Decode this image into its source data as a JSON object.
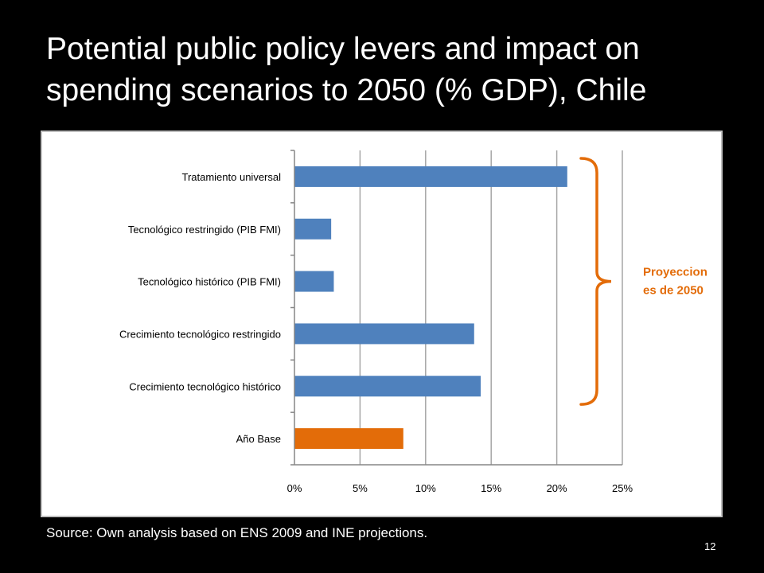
{
  "slide": {
    "title": "Potential public policy levers and impact on spending scenarios to 2050 (% GDP), Chile",
    "source": "Source: Own analysis based on ENS 2009 and INE projections.",
    "page_number": "12"
  },
  "colors": {
    "series_blue": "#4f81bd",
    "base_orange": "#e36c09",
    "brace_orange": "#e36c09",
    "grid": "#a6a6a6"
  },
  "chart_data": {
    "type": "bar",
    "orientation": "horizontal",
    "title": "",
    "xlabel": "",
    "ylabel": "",
    "categories": [
      "Tratamiento universal",
      "Tecnológico restringido (PIB FMI)",
      "Tecnológico histórico (PIB FMI)",
      "Crecimiento tecnológico restringido",
      "Crecimiento tecnológico histórico",
      "Año Base"
    ],
    "values": [
      20.8,
      2.8,
      3.0,
      13.7,
      14.2,
      8.3
    ],
    "bar_colors": [
      "#4f81bd",
      "#4f81bd",
      "#4f81bd",
      "#4f81bd",
      "#4f81bd",
      "#e36c09"
    ],
    "xlim": [
      0,
      25
    ],
    "ticks": [
      0,
      5,
      10,
      15,
      20,
      25
    ],
    "tick_labels": [
      "0%",
      "5%",
      "10%",
      "15%",
      "20%",
      "25%"
    ],
    "grid": "vertical",
    "legend": "none",
    "annotation": {
      "text_line1": "Proyeccion",
      "text_line2": "es de 2050",
      "spans_categories": [
        0,
        4
      ]
    }
  }
}
